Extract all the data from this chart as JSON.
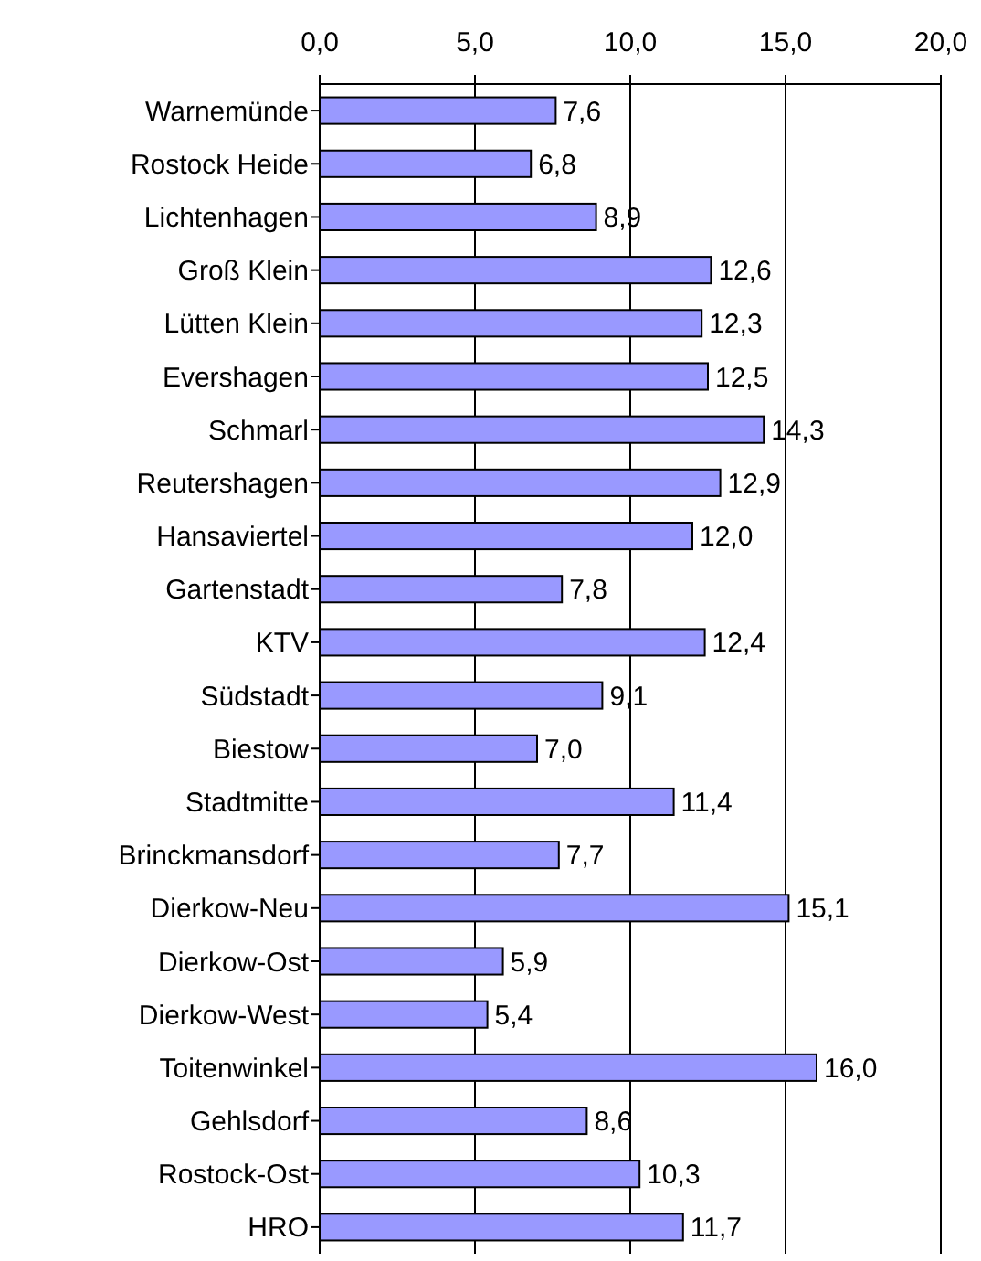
{
  "chart_data": {
    "type": "bar",
    "orientation": "horizontal",
    "categories": [
      "Warnemünde",
      "Rostock Heide",
      "Lichtenhagen",
      "Groß Klein",
      "Lütten Klein",
      "Evershagen",
      "Schmarl",
      "Reutershagen",
      "Hansaviertel",
      "Gartenstadt",
      "KTV",
      "Südstadt",
      "Biestow",
      "Stadtmitte",
      "Brinckmansdorf",
      "Dierkow-Neu",
      "Dierkow-Ost",
      "Dierkow-West",
      "Toitenwinkel",
      "Gehlsdorf",
      "Rostock-Ost",
      "HRO"
    ],
    "values": [
      7.6,
      6.8,
      8.9,
      12.6,
      12.3,
      12.5,
      14.3,
      12.9,
      12.0,
      7.8,
      12.4,
      9.1,
      7.0,
      11.4,
      7.7,
      15.1,
      5.9,
      5.4,
      16.0,
      8.6,
      10.3,
      11.7
    ],
    "value_labels": [
      "7,6",
      "6,8",
      "8,9",
      "12,6",
      "12,3",
      "12,5",
      "14,3",
      "12,9",
      "12,0",
      "7,8",
      "12,4",
      "9,1",
      "7,0",
      "11,4",
      "7,7",
      "15,1",
      "5,9",
      "5,4",
      "16,0",
      "8,6",
      "10,3",
      "11,7"
    ],
    "color": "#9999ff",
    "xlim": [
      0,
      20
    ],
    "xticks": [
      {
        "value": 0,
        "label": "0,0"
      },
      {
        "value": 5,
        "label": "5,0"
      },
      {
        "value": 10,
        "label": "10,0"
      },
      {
        "value": 15,
        "label": "15,0"
      },
      {
        "value": 20,
        "label": "20,0"
      }
    ],
    "grid": "x"
  }
}
